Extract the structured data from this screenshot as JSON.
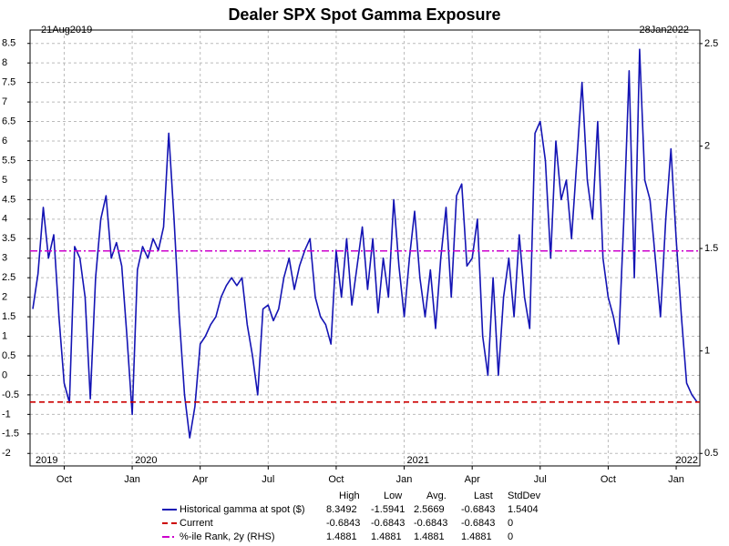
{
  "chart_data": {
    "type": "line",
    "title": "Dealer SPX Spot Gamma Exposure",
    "start_label": "21Aug2019",
    "end_label": "28Jan2022",
    "categories": [
      null,
      null,
      null,
      null,
      null,
      null,
      "Oct",
      null,
      null,
      null,
      null,
      null,
      null,
      null,
      null,
      null,
      null,
      null,
      null,
      "Jan",
      null,
      null,
      null,
      null,
      null,
      null,
      null,
      null,
      null,
      null,
      null,
      null,
      "Apr",
      null,
      null,
      null,
      null,
      null,
      null,
      null,
      null,
      null,
      null,
      null,
      null,
      "Jul",
      null,
      null,
      null,
      null,
      null,
      null,
      null,
      null,
      null,
      null,
      null,
      null,
      "Oct",
      null,
      null,
      null,
      null,
      null,
      null,
      null,
      null,
      null,
      null,
      null,
      null,
      "Jan",
      null,
      null,
      null,
      null,
      null,
      null,
      null,
      null,
      null,
      null,
      null,
      null,
      "Apr",
      null,
      null,
      null,
      null,
      null,
      null,
      null,
      null,
      null,
      null,
      null,
      null,
      "Jul",
      null,
      null,
      null,
      null,
      null,
      null,
      null,
      null,
      null,
      null,
      null,
      null,
      "Oct",
      null,
      null,
      null,
      null,
      null,
      null,
      null,
      null,
      null,
      null,
      null,
      null,
      "Jan",
      null,
      null,
      null,
      null
    ],
    "year_labels": [
      "2019",
      "2020",
      "2021",
      "2022"
    ],
    "ylim": [
      -2.32,
      8.68
    ],
    "yticks": [
      -2,
      -1.5,
      -1,
      -0.5,
      0,
      0.5,
      1,
      1.5,
      2,
      2.5,
      3,
      3.5,
      4,
      4.5,
      5,
      5.5,
      6,
      6.5,
      7,
      7.5,
      8,
      8.5
    ],
    "y2lim": [
      0.439,
      2.535
    ],
    "y2ticks": [
      0.5,
      1,
      1.5,
      2,
      2.5
    ],
    "grid": true,
    "stats_columns": [
      "High",
      "Low",
      "Avg.",
      "Last",
      "StdDev"
    ],
    "series": [
      {
        "name": "Historical gamma at spot ($)",
        "color": "#1414b4",
        "text_color": "#3a3acc",
        "style": "solid",
        "values": [
          1.7,
          2.6,
          4.3,
          3.0,
          3.6,
          1.5,
          -0.2,
          -0.7,
          3.3,
          3.0,
          2.0,
          -0.6,
          2.5,
          4.0,
          4.6,
          3.0,
          3.4,
          2.8,
          1.0,
          -1.0,
          2.7,
          3.3,
          3.0,
          3.5,
          3.2,
          3.8,
          6.2,
          4.0,
          1.5,
          -0.5,
          -1.6,
          -0.8,
          0.8,
          1.0,
          1.3,
          1.5,
          2.0,
          2.3,
          2.5,
          2.3,
          2.5,
          1.3,
          0.5,
          -0.5,
          1.7,
          1.8,
          1.4,
          1.7,
          2.5,
          3.0,
          2.2,
          2.8,
          3.2,
          3.5,
          2.0,
          1.5,
          1.3,
          0.8,
          3.2,
          2.0,
          3.5,
          1.8,
          2.8,
          3.8,
          2.2,
          3.5,
          1.6,
          3.0,
          2.0,
          4.5,
          2.8,
          1.5,
          3.0,
          4.2,
          2.5,
          1.5,
          2.7,
          1.2,
          3.0,
          4.3,
          2.0,
          4.6,
          4.9,
          2.8,
          3.0,
          4.0,
          1.0,
          0.0,
          2.5,
          0.0,
          2.0,
          3.0,
          1.5,
          3.6,
          2.0,
          1.2,
          6.2,
          6.5,
          5.5,
          3.0,
          6.0,
          4.5,
          5.0,
          3.5,
          5.5,
          7.5,
          5.0,
          4.0,
          6.5,
          3.0,
          2.0,
          1.5,
          0.8,
          4.0,
          7.8,
          2.5,
          8.35,
          5.0,
          4.5,
          3.0,
          1.5,
          4.0,
          5.8,
          3.5,
          1.5,
          -0.2,
          -0.5,
          -0.6843
        ],
        "stats": [
          8.3492,
          -1.5941,
          2.5669,
          -0.6843,
          1.5404
        ]
      },
      {
        "name": "Current",
        "color": "#cc0000",
        "text_color": "#cc0000",
        "style": "dashed",
        "value": -0.6843,
        "stats": [
          -0.6843,
          -0.6843,
          -0.6843,
          -0.6843,
          0
        ]
      },
      {
        "name": "%-ile Rank, 2y (RHS)",
        "color": "#cc00cc",
        "text_color": "#cc00cc",
        "style": "dashdot",
        "axis": "y2",
        "value": 1.4881,
        "stats": [
          1.4881,
          1.4881,
          1.4881,
          1.4881,
          0
        ]
      }
    ]
  }
}
